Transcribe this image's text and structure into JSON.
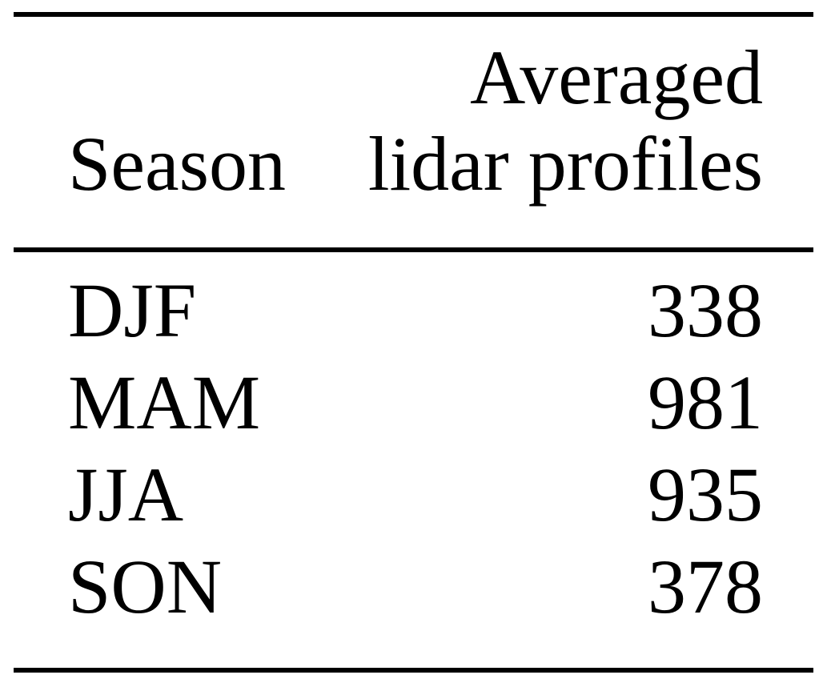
{
  "table": {
    "header": {
      "season_label": "Season",
      "value_label_line1": "Averaged",
      "value_label_line2": "lidar profiles"
    },
    "rows": [
      {
        "season": "DJF",
        "profiles": "338"
      },
      {
        "season": "MAM",
        "profiles": "981"
      },
      {
        "season": "JJA",
        "profiles": "935"
      },
      {
        "season": "SON",
        "profiles": "378"
      }
    ]
  },
  "colors": {
    "background": "#ffffff",
    "text": "#000000",
    "rule": "#000000"
  }
}
